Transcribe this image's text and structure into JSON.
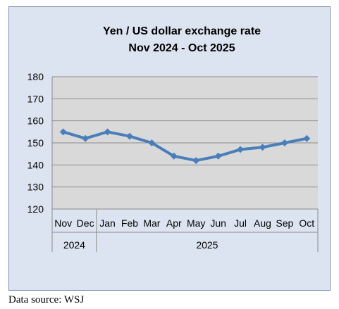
{
  "chart_data": {
    "type": "line",
    "title": [
      "Yen / US dollar exchange rate",
      "Nov 2024  -  Oct 2025"
    ],
    "categories": [
      "Nov",
      "Dec",
      "Jan",
      "Feb",
      "Mar",
      "Apr",
      "May",
      "Jun",
      "Jul",
      "Aug",
      "Sep",
      "Oct"
    ],
    "year_groups": [
      {
        "label": "2024",
        "count": 2
      },
      {
        "label": "2025",
        "count": 10
      }
    ],
    "series": [
      {
        "values": [
          155,
          152,
          155,
          153,
          150,
          144,
          142,
          144,
          147,
          148,
          150,
          152
        ]
      }
    ],
    "ylim": [
      120,
      180
    ],
    "yticks": [
      120,
      130,
      140,
      150,
      160,
      170,
      180
    ],
    "grid": true,
    "legend": "none",
    "colors": {
      "frame_bg": "#dbe4f0",
      "plot_bg": "#d9d9d9",
      "line": "#4a7ebb",
      "grid": "#8c8c8c"
    }
  },
  "source_note": "Data source: WSJ"
}
